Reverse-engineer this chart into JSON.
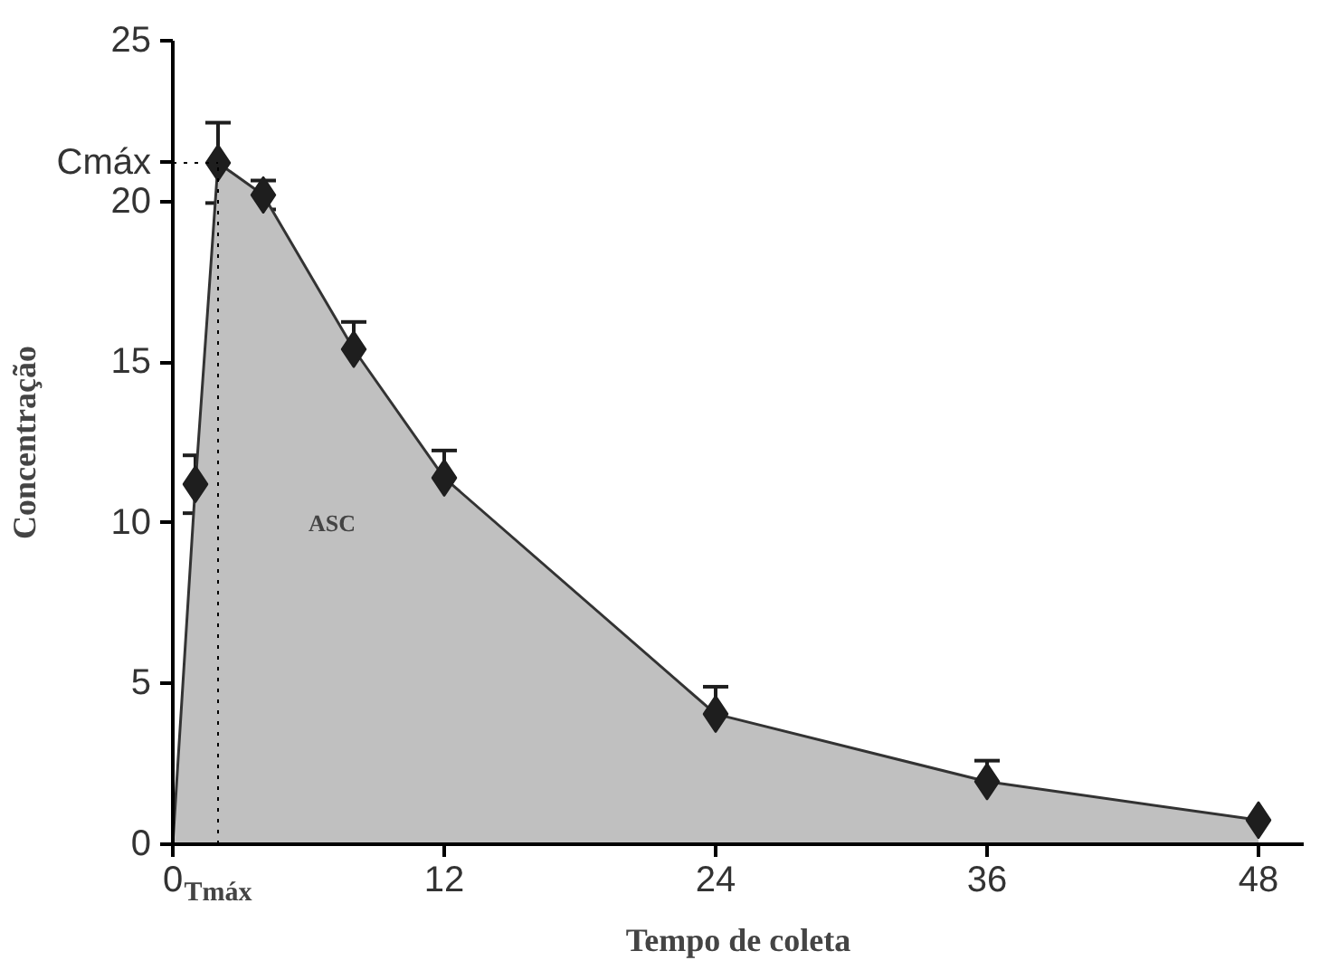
{
  "chart_data": {
    "type": "area",
    "xlabel": "Tempo de coleta",
    "ylabel": "Concentração",
    "x": [
      0,
      1,
      2,
      4,
      8,
      12,
      24,
      36,
      48
    ],
    "series": [
      {
        "color": "#c0c0c0",
        "values": [
          0,
          11.2,
          21.2,
          20.2,
          15.4,
          11.4,
          4.05,
          1.95,
          0.75
        ]
      },
      {
        "type": "scatter",
        "color": "#1e1e1e",
        "x": [
          1,
          2,
          4,
          8,
          12,
          24,
          36,
          48
        ],
        "values": [
          11.2,
          21.2,
          20.2,
          15.4,
          11.4,
          4.05,
          1.95,
          0.75
        ],
        "errors": [
          0.9,
          1.25,
          0.45,
          0.85,
          0.85,
          0.85,
          0.65,
          null
        ],
        "marker": "diamond"
      }
    ],
    "xlim": [
      0,
      50
    ],
    "ylim": [
      0,
      25
    ],
    "xticks": [
      0,
      12,
      24,
      36,
      48
    ],
    "yticks": [
      0,
      5,
      10,
      15,
      20,
      25
    ],
    "ref_lines": [
      {
        "axis": "y",
        "value": 21.2,
        "label": "Cmáx",
        "line_style": "dotted"
      },
      {
        "axis": "x",
        "value": 2,
        "label": "Tmáx",
        "line_style": "dotted"
      }
    ],
    "annotations": [
      "ASC"
    ],
    "grid": false
  }
}
